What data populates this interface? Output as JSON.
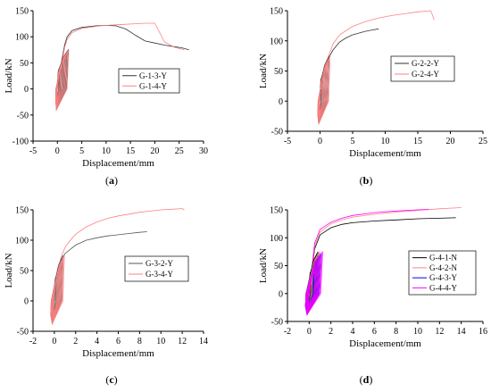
{
  "chart_data": [
    {
      "type": "line",
      "panel": "(a)",
      "caption_letter": "a",
      "xlabel": "Displacement/mm",
      "ylabel": "Load/kN",
      "xlim": [
        -5,
        30
      ],
      "ylim": [
        -100,
        150
      ],
      "xticks": [
        -5,
        0,
        5,
        10,
        15,
        20,
        25,
        30
      ],
      "yticks": [
        -100,
        -50,
        0,
        50,
        100,
        150
      ],
      "legend_position": "center-right",
      "series": [
        {
          "name": "G-1-3-Y",
          "color": "#333333",
          "x": [
            0,
            0.5,
            1,
            1.5,
            2,
            3,
            5,
            8,
            10,
            12,
            14,
            16,
            18,
            20,
            22,
            24,
            25.5,
            27
          ],
          "y": [
            0,
            35,
            60,
            85,
            100,
            112,
            118,
            121,
            122,
            121,
            115,
            103,
            92,
            88,
            84,
            81,
            79,
            75
          ]
        },
        {
          "name": "G-1-4-Y",
          "color": "#ff8080",
          "x": [
            0,
            0.5,
            1,
            1.5,
            2,
            3,
            5,
            8,
            10,
            12,
            14,
            16,
            18,
            20,
            22,
            24,
            26
          ],
          "y": [
            0,
            30,
            55,
            80,
            95,
            108,
            116,
            120,
            122,
            123,
            124,
            125,
            126,
            126,
            90,
            80,
            75
          ]
        }
      ]
    },
    {
      "type": "line",
      "panel": "(b)",
      "caption_letter": "b",
      "xlabel": "Displacement/mm",
      "ylabel": "Load/kN",
      "xlim": [
        -5,
        25
      ],
      "ylim": [
        -50,
        150
      ],
      "xticks": [
        -5,
        0,
        5,
        10,
        15,
        20,
        25
      ],
      "yticks": [
        -50,
        0,
        50,
        100,
        150
      ],
      "legend_position": "center-right",
      "series": [
        {
          "name": "G-2-2-Y",
          "color": "#333333",
          "x": [
            0,
            0.5,
            1,
            1.5,
            2,
            3,
            4,
            5,
            6,
            7,
            8,
            9
          ],
          "y": [
            0,
            45,
            65,
            75,
            85,
            98,
            105,
            110,
            113,
            116,
            118,
            120
          ]
        },
        {
          "name": "G-2-4-Y",
          "color": "#ff8080",
          "x": [
            0,
            0.5,
            1,
            1.5,
            2,
            3,
            5,
            7,
            9,
            11,
            13,
            15,
            17,
            17.5
          ],
          "y": [
            0,
            45,
            65,
            80,
            95,
            110,
            124,
            132,
            138,
            142,
            145,
            148,
            150,
            135
          ]
        }
      ]
    },
    {
      "type": "line",
      "panel": "(c)",
      "caption_letter": "c",
      "xlabel": "Displacement/mm",
      "ylabel": "Load/kN",
      "xlim": [
        -2,
        14
      ],
      "ylim": [
        -50,
        150
      ],
      "xticks": [
        -2,
        0,
        2,
        4,
        6,
        8,
        10,
        12,
        14
      ],
      "yticks": [
        -50,
        0,
        50,
        100,
        150
      ],
      "legend_position": "center-right",
      "series": [
        {
          "name": "G-3-2-Y",
          "color": "#555555",
          "x": [
            0,
            0.3,
            0.6,
            1,
            1.5,
            2,
            3,
            4,
            5,
            6,
            7,
            8,
            8.7
          ],
          "y": [
            0,
            45,
            65,
            78,
            85,
            92,
            100,
            104,
            107,
            109,
            111,
            113,
            114
          ]
        },
        {
          "name": "G-3-4-Y",
          "color": "#ff8080",
          "x": [
            0,
            0.3,
            0.6,
            1,
            1.5,
            2,
            3,
            4,
            5,
            6,
            7,
            8,
            9,
            10,
            11,
            12,
            12.2
          ],
          "y": [
            0,
            45,
            70,
            88,
            100,
            110,
            122,
            130,
            136,
            140,
            143,
            146,
            148,
            150,
            151,
            152,
            150
          ]
        }
      ]
    },
    {
      "type": "line",
      "panel": "(d)",
      "caption_letter": "d",
      "xlabel": "Displacement/mm",
      "ylabel": "Load/kN",
      "xlim": [
        -2,
        16
      ],
      "ylim": [
        -50,
        150
      ],
      "xticks": [
        -2,
        0,
        2,
        4,
        6,
        8,
        10,
        12,
        14,
        16
      ],
      "yticks": [
        -50,
        0,
        50,
        100,
        150
      ],
      "legend_position": "center-right",
      "series": [
        {
          "name": "G-4-1-N",
          "color": "#000000",
          "x": [
            0,
            0.5,
            1,
            2,
            3,
            4,
            6,
            8,
            10,
            12,
            13.5
          ],
          "y": [
            0,
            80,
            105,
            118,
            124,
            127,
            130,
            132,
            134,
            135,
            136
          ]
        },
        {
          "name": "G-4-2-N",
          "color": "#ff8080",
          "x": [
            0,
            0.5,
            1,
            2,
            3,
            4,
            6,
            8,
            10,
            12,
            14
          ],
          "y": [
            0,
            85,
            110,
            125,
            132,
            137,
            142,
            146,
            149,
            152,
            154
          ]
        },
        {
          "name": "G-4-3-Y",
          "color": "#0000ff",
          "x": [
            0,
            0.3,
            0.6,
            0.9
          ],
          "y": [
            0,
            40,
            60,
            72
          ]
        },
        {
          "name": "G-4-4-Y",
          "color": "#ff00ff",
          "x": [
            0,
            0.5,
            1,
            2,
            3,
            4,
            6,
            8,
            10,
            11
          ],
          "y": [
            0,
            90,
            115,
            128,
            135,
            140,
            145,
            148,
            150,
            151
          ]
        }
      ]
    }
  ]
}
